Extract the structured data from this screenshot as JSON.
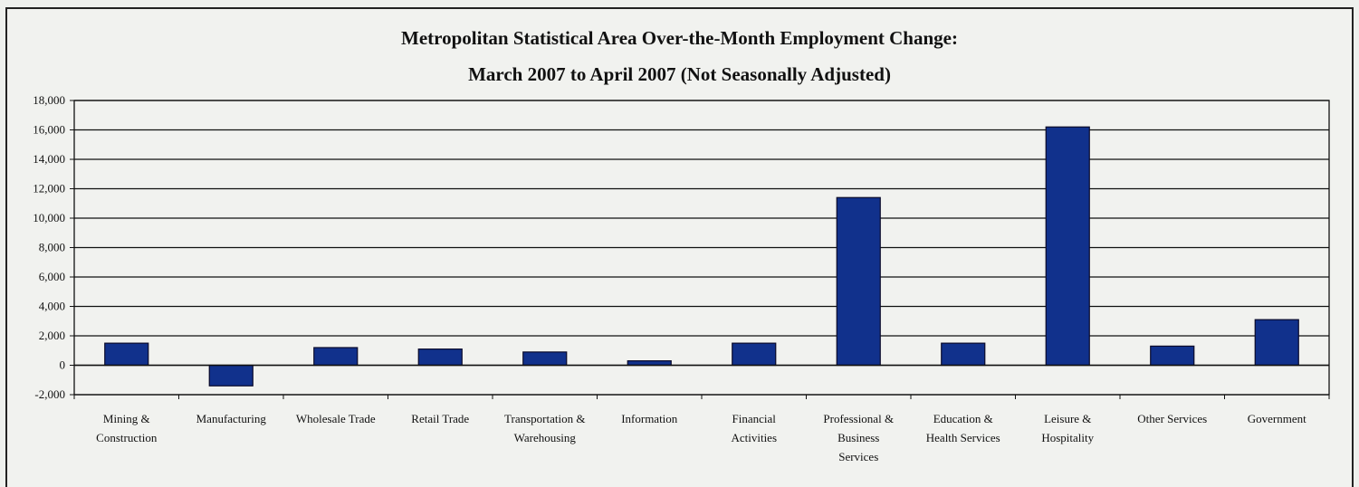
{
  "chart_data": {
    "type": "bar",
    "title": "Metropolitan Statistical Area Over-the-Month Employment Change:",
    "subtitle": "March 2007 to April 2007 (Not Seasonally Adjusted)",
    "xlabel": "",
    "ylabel": "",
    "ylim": [
      -2000,
      18000
    ],
    "yticks": [
      -2000,
      0,
      2000,
      4000,
      6000,
      8000,
      10000,
      12000,
      14000,
      16000,
      18000
    ],
    "ytick_labels": [
      "-2,000",
      "0",
      "2,000",
      "4,000",
      "6,000",
      "8,000",
      "10,000",
      "12,000",
      "14,000",
      "16,000",
      "18,000"
    ],
    "categories": [
      [
        "Mining &",
        "Construction"
      ],
      [
        "Manufacturing"
      ],
      [
        "Wholesale Trade"
      ],
      [
        "Retail Trade"
      ],
      [
        "Transportation &",
        "Warehousing"
      ],
      [
        "Information"
      ],
      [
        "Financial",
        "Activities"
      ],
      [
        "Professional &",
        "Business",
        "Services"
      ],
      [
        "Education &",
        "Health Services"
      ],
      [
        "Leisure &",
        "Hospitality"
      ],
      [
        "Other Services"
      ],
      [
        "Government"
      ]
    ],
    "values": [
      1500,
      -1400,
      1200,
      1100,
      900,
      300,
      1500,
      11400,
      1500,
      16200,
      1300,
      3100
    ],
    "grid": true,
    "legend": "none",
    "colors": {
      "bar": "#11318c",
      "bar_edge": "#0a0a2a",
      "grid": "#111111"
    }
  }
}
